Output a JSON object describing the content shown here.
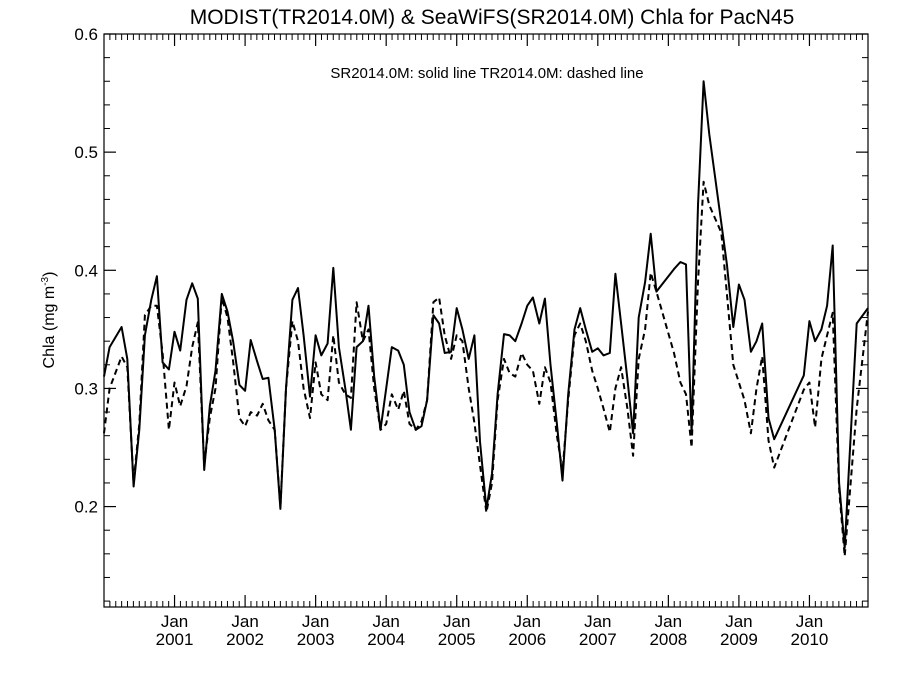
{
  "chart_data": {
    "type": "line",
    "title": "MODIST(TR2014.0M) & SeaWiFS(SR2014.0M)  Chla for PacN45",
    "ylabel": "Chla (mg m",
    "ylabel_sup": "-3",
    "ylabel_close": ")",
    "annotation": "SR2014.0M: solid line   TR2014.0M: dashed line",
    "ylim": [
      0.115,
      0.6
    ],
    "yticks": [
      0.2,
      0.3,
      0.4,
      0.5,
      0.6
    ],
    "ytick_labels": [
      "0.2",
      "0.3",
      "0.4",
      "0.5",
      "0.6"
    ],
    "xlim": [
      2000.0,
      2010.83
    ],
    "xtick_labels": [
      {
        "month": "Jan",
        "year": "2001"
      },
      {
        "month": "Jan",
        "year": "2002"
      },
      {
        "month": "Jan",
        "year": "2003"
      },
      {
        "month": "Jan",
        "year": "2004"
      },
      {
        "month": "Jan",
        "year": "2005"
      },
      {
        "month": "Jan",
        "year": "2006"
      },
      {
        "month": "Jan",
        "year": "2007"
      },
      {
        "month": "Jan",
        "year": "2008"
      },
      {
        "month": "Jan",
        "year": "2009"
      },
      {
        "month": "Jan",
        "year": "2010"
      }
    ],
    "xtick_values": [
      2001,
      2002,
      2003,
      2004,
      2005,
      2006,
      2007,
      2008,
      2009,
      2010
    ],
    "grid": false,
    "series": [
      {
        "name": "SR2014.0M",
        "style": "solid",
        "color": "#000000",
        "points": [
          [
            2000.0,
            0.31
          ],
          [
            2000.08,
            0.335
          ],
          [
            2000.25,
            0.352
          ],
          [
            2000.33,
            0.325
          ],
          [
            2000.42,
            0.217
          ],
          [
            2000.5,
            0.265
          ],
          [
            2000.58,
            0.345
          ],
          [
            2000.67,
            0.375
          ],
          [
            2000.75,
            0.395
          ],
          [
            2000.83,
            0.322
          ],
          [
            2000.92,
            0.316
          ],
          [
            2001.0,
            0.348
          ],
          [
            2001.08,
            0.332
          ],
          [
            2001.17,
            0.375
          ],
          [
            2001.25,
            0.389
          ],
          [
            2001.33,
            0.376
          ],
          [
            2001.42,
            0.231
          ],
          [
            2001.5,
            0.285
          ],
          [
            2001.58,
            0.315
          ],
          [
            2001.67,
            0.38
          ],
          [
            2001.75,
            0.365
          ],
          [
            2001.83,
            0.34
          ],
          [
            2001.92,
            0.303
          ],
          [
            2002.0,
            0.298
          ],
          [
            2002.08,
            0.341
          ],
          [
            2002.17,
            0.323
          ],
          [
            2002.25,
            0.308
          ],
          [
            2002.33,
            0.309
          ],
          [
            2002.42,
            0.265
          ],
          [
            2002.5,
            0.198
          ],
          [
            2002.58,
            0.3
          ],
          [
            2002.67,
            0.375
          ],
          [
            2002.75,
            0.385
          ],
          [
            2002.83,
            0.345
          ],
          [
            2002.92,
            0.293
          ],
          [
            2003.0,
            0.345
          ],
          [
            2003.08,
            0.328
          ],
          [
            2003.17,
            0.338
          ],
          [
            2003.25,
            0.402
          ],
          [
            2003.33,
            0.335
          ],
          [
            2003.42,
            0.3
          ],
          [
            2003.5,
            0.265
          ],
          [
            2003.58,
            0.335
          ],
          [
            2003.67,
            0.34
          ],
          [
            2003.75,
            0.37
          ],
          [
            2003.83,
            0.31
          ],
          [
            2003.92,
            0.265
          ],
          [
            2004.0,
            0.3
          ],
          [
            2004.08,
            0.335
          ],
          [
            2004.17,
            0.332
          ],
          [
            2004.25,
            0.32
          ],
          [
            2004.33,
            0.28
          ],
          [
            2004.42,
            0.265
          ],
          [
            2004.5,
            0.268
          ],
          [
            2004.58,
            0.29
          ],
          [
            2004.67,
            0.362
          ],
          [
            2004.75,
            0.355
          ],
          [
            2004.83,
            0.33
          ],
          [
            2004.92,
            0.331
          ],
          [
            2005.0,
            0.368
          ],
          [
            2005.08,
            0.35
          ],
          [
            2005.17,
            0.325
          ],
          [
            2005.25,
            0.345
          ],
          [
            2005.33,
            0.255
          ],
          [
            2005.42,
            0.198
          ],
          [
            2005.5,
            0.228
          ],
          [
            2005.58,
            0.295
          ],
          [
            2005.67,
            0.346
          ],
          [
            2005.75,
            0.345
          ],
          [
            2005.83,
            0.34
          ],
          [
            2005.92,
            0.355
          ],
          [
            2006.0,
            0.37
          ],
          [
            2006.08,
            0.377
          ],
          [
            2006.17,
            0.355
          ],
          [
            2006.25,
            0.376
          ],
          [
            2006.33,
            0.32
          ],
          [
            2006.42,
            0.27
          ],
          [
            2006.5,
            0.222
          ],
          [
            2006.58,
            0.295
          ],
          [
            2006.67,
            0.35
          ],
          [
            2006.75,
            0.368
          ],
          [
            2006.83,
            0.35
          ],
          [
            2006.92,
            0.331
          ],
          [
            2007.0,
            0.334
          ],
          [
            2007.08,
            0.328
          ],
          [
            2007.17,
            0.33
          ],
          [
            2007.25,
            0.397
          ],
          [
            2007.33,
            0.355
          ],
          [
            2007.42,
            0.308
          ],
          [
            2007.5,
            0.262
          ],
          [
            2007.58,
            0.36
          ],
          [
            2007.67,
            0.39
          ],
          [
            2007.75,
            0.431
          ],
          [
            2007.83,
            0.382
          ],
          [
            2008.08,
            0.401
          ],
          [
            2008.17,
            0.407
          ],
          [
            2008.25,
            0.405
          ],
          [
            2008.33,
            0.262
          ],
          [
            2008.42,
            0.455
          ],
          [
            2008.5,
            0.56
          ],
          [
            2008.58,
            0.515
          ],
          [
            2008.75,
            0.44
          ],
          [
            2008.83,
            0.405
          ],
          [
            2008.92,
            0.352
          ],
          [
            2009.0,
            0.388
          ],
          [
            2009.08,
            0.375
          ],
          [
            2009.17,
            0.331
          ],
          [
            2009.25,
            0.34
          ],
          [
            2009.33,
            0.355
          ],
          [
            2009.42,
            0.275
          ],
          [
            2009.5,
            0.257
          ],
          [
            2009.92,
            0.311
          ],
          [
            2010.0,
            0.357
          ],
          [
            2010.08,
            0.34
          ],
          [
            2010.17,
            0.35
          ],
          [
            2010.25,
            0.37
          ],
          [
            2010.33,
            0.421
          ],
          [
            2010.42,
            0.22
          ],
          [
            2010.5,
            0.165
          ],
          [
            2010.67,
            0.355
          ],
          [
            2010.83,
            0.368
          ]
        ]
      },
      {
        "name": "TR2014.0M",
        "style": "dashed",
        "color": "#000000",
        "points": [
          [
            2000.0,
            0.262
          ],
          [
            2000.08,
            0.3
          ],
          [
            2000.25,
            0.327
          ],
          [
            2000.33,
            0.318
          ],
          [
            2000.42,
            0.22
          ],
          [
            2000.5,
            0.27
          ],
          [
            2000.58,
            0.362
          ],
          [
            2000.67,
            0.37
          ],
          [
            2000.75,
            0.37
          ],
          [
            2000.83,
            0.33
          ],
          [
            2000.92,
            0.265
          ],
          [
            2001.0,
            0.305
          ],
          [
            2001.08,
            0.285
          ],
          [
            2001.17,
            0.302
          ],
          [
            2001.25,
            0.335
          ],
          [
            2001.33,
            0.356
          ],
          [
            2001.42,
            0.235
          ],
          [
            2001.5,
            0.275
          ],
          [
            2001.58,
            0.3
          ],
          [
            2001.67,
            0.377
          ],
          [
            2001.75,
            0.36
          ],
          [
            2001.83,
            0.323
          ],
          [
            2001.92,
            0.275
          ],
          [
            2002.0,
            0.268
          ],
          [
            2002.08,
            0.28
          ],
          [
            2002.17,
            0.277
          ],
          [
            2002.25,
            0.287
          ],
          [
            2002.33,
            0.273
          ],
          [
            2002.42,
            0.265
          ],
          [
            2002.5,
            0.2
          ],
          [
            2002.58,
            0.3
          ],
          [
            2002.67,
            0.357
          ],
          [
            2002.75,
            0.34
          ],
          [
            2002.83,
            0.3
          ],
          [
            2002.92,
            0.275
          ],
          [
            2003.0,
            0.322
          ],
          [
            2003.08,
            0.295
          ],
          [
            2003.17,
            0.29
          ],
          [
            2003.25,
            0.345
          ],
          [
            2003.33,
            0.305
          ],
          [
            2003.42,
            0.295
          ],
          [
            2003.5,
            0.292
          ],
          [
            2003.58,
            0.373
          ],
          [
            2003.67,
            0.34
          ],
          [
            2003.75,
            0.35
          ],
          [
            2003.83,
            0.3
          ],
          [
            2003.92,
            0.265
          ],
          [
            2004.0,
            0.27
          ],
          [
            2004.08,
            0.295
          ],
          [
            2004.17,
            0.282
          ],
          [
            2004.25,
            0.298
          ],
          [
            2004.33,
            0.27
          ],
          [
            2004.42,
            0.265
          ],
          [
            2004.5,
            0.272
          ],
          [
            2004.58,
            0.29
          ],
          [
            2004.67,
            0.373
          ],
          [
            2004.75,
            0.377
          ],
          [
            2004.83,
            0.345
          ],
          [
            2004.92,
            0.325
          ],
          [
            2005.0,
            0.345
          ],
          [
            2005.08,
            0.34
          ],
          [
            2005.17,
            0.3
          ],
          [
            2005.25,
            0.271
          ],
          [
            2005.33,
            0.235
          ],
          [
            2005.42,
            0.195
          ],
          [
            2005.5,
            0.22
          ],
          [
            2005.58,
            0.29
          ],
          [
            2005.67,
            0.325
          ],
          [
            2005.75,
            0.313
          ],
          [
            2005.83,
            0.31
          ],
          [
            2005.92,
            0.33
          ],
          [
            2006.0,
            0.32
          ],
          [
            2006.08,
            0.315
          ],
          [
            2006.17,
            0.287
          ],
          [
            2006.25,
            0.318
          ],
          [
            2006.33,
            0.305
          ],
          [
            2006.42,
            0.26
          ],
          [
            2006.5,
            0.23
          ],
          [
            2006.58,
            0.29
          ],
          [
            2006.67,
            0.345
          ],
          [
            2006.75,
            0.355
          ],
          [
            2006.83,
            0.34
          ],
          [
            2006.92,
            0.315
          ],
          [
            2007.0,
            0.3
          ],
          [
            2007.08,
            0.283
          ],
          [
            2007.17,
            0.263
          ],
          [
            2007.25,
            0.3
          ],
          [
            2007.33,
            0.318
          ],
          [
            2007.42,
            0.283
          ],
          [
            2007.5,
            0.243
          ],
          [
            2007.58,
            0.325
          ],
          [
            2007.67,
            0.35
          ],
          [
            2007.75,
            0.398
          ],
          [
            2007.83,
            0.382
          ],
          [
            2008.08,
            0.33
          ],
          [
            2008.17,
            0.305
          ],
          [
            2008.25,
            0.295
          ],
          [
            2008.33,
            0.25
          ],
          [
            2008.42,
            0.39
          ],
          [
            2008.5,
            0.475
          ],
          [
            2008.58,
            0.455
          ],
          [
            2008.75,
            0.432
          ],
          [
            2008.83,
            0.38
          ],
          [
            2008.92,
            0.32
          ],
          [
            2009.0,
            0.305
          ],
          [
            2009.08,
            0.29
          ],
          [
            2009.17,
            0.262
          ],
          [
            2009.25,
            0.3
          ],
          [
            2009.33,
            0.327
          ],
          [
            2009.42,
            0.256
          ],
          [
            2009.5,
            0.233
          ],
          [
            2009.92,
            0.299
          ],
          [
            2010.0,
            0.305
          ],
          [
            2010.08,
            0.267
          ],
          [
            2010.17,
            0.325
          ],
          [
            2010.25,
            0.345
          ],
          [
            2010.33,
            0.364
          ],
          [
            2010.42,
            0.215
          ],
          [
            2010.5,
            0.158
          ],
          [
            2010.67,
            0.283
          ],
          [
            2010.83,
            0.365
          ]
        ]
      }
    ]
  }
}
